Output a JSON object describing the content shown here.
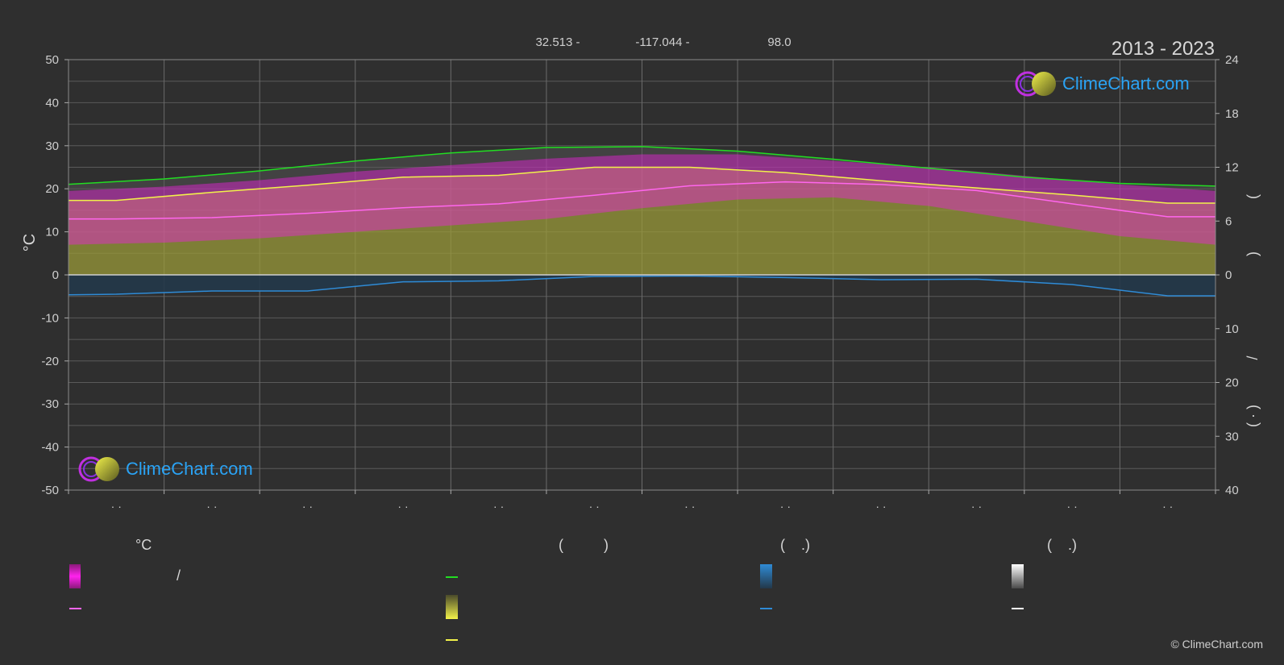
{
  "header": {
    "latitude_text": "32.513 -",
    "longitude_text": "-117.044 -",
    "elevation_text": "98.0",
    "period": "2013 - 2023"
  },
  "logo": {
    "text": "ClimeChart.com"
  },
  "copyright": "© ClimeChart.com",
  "legend": {
    "col1_head": "°C",
    "col1_sep": "/",
    "col2_head": "(          )",
    "col3_head": "(    .)",
    "col4_head": "(    .)"
  },
  "colors": {
    "background": "#2f2f2f",
    "daylight": "#22dd22",
    "sunshine": "#f2f24a",
    "temp_mean": "#ff66ee",
    "temp_range": "#ee22dd",
    "precip": "#2f8bd6",
    "sunshine_fill": "#9a9a3a",
    "grid": "#5a5a5a"
  },
  "chart_data": {
    "type": "line",
    "x": [
      0,
      1,
      2,
      3,
      4,
      5,
      6,
      7,
      8,
      9,
      10,
      11,
      12
    ],
    "xlim": [
      0,
      12
    ],
    "x_tick_labels": [
      "· ·",
      "· ·",
      "· ·",
      "· ·",
      "· ·",
      "· ·",
      "· ·",
      "· ·",
      "· ·",
      "· ·",
      "· ·",
      "· ·"
    ],
    "y_left": {
      "label": "°C",
      "range": [
        -50,
        50
      ],
      "ticks": [
        50,
        40,
        30,
        20,
        10,
        0,
        -10,
        -20,
        -30,
        -40,
        -50
      ]
    },
    "y_right_top": {
      "range": [
        0,
        24
      ],
      "ticks": [
        24,
        18,
        12,
        6,
        0
      ],
      "label_parts": [
        "(",
        ")"
      ]
    },
    "y_right_bottom": {
      "range": [
        0,
        40
      ],
      "ticks": [
        0,
        10,
        20,
        30,
        40
      ],
      "label_parts": [
        "/",
        "(   ·   )"
      ]
    },
    "series": [
      {
        "key": "daylight",
        "axis": "right_top",
        "x": [
          0,
          1,
          2,
          3,
          4,
          5,
          6,
          7,
          8,
          9,
          10,
          11,
          12
        ],
        "values": [
          10.1,
          10.7,
          11.6,
          12.7,
          13.6,
          14.2,
          14.3,
          13.8,
          12.9,
          11.9,
          10.9,
          10.2,
          9.9
        ]
      },
      {
        "key": "sunshine",
        "axis": "right_top",
        "x": [
          0,
          0.5,
          1.5,
          2.5,
          3.5,
          4.5,
          5.5,
          6.5,
          7.5,
          8.5,
          9.5,
          10.5,
          11.5,
          12
        ],
        "values": [
          8.3,
          8.3,
          9.2,
          10.0,
          10.9,
          11.1,
          12.0,
          12.0,
          11.4,
          10.5,
          9.7,
          8.9,
          8.0,
          8.0
        ]
      },
      {
        "key": "temp_mean",
        "axis": "left",
        "x": [
          0,
          0.5,
          1.5,
          2.5,
          3.5,
          4.5,
          5.5,
          6.5,
          7.5,
          8.5,
          9.5,
          10.5,
          11.5,
          12
        ],
        "values": [
          13.0,
          13.0,
          13.3,
          14.3,
          15.6,
          16.5,
          18.5,
          20.7,
          21.6,
          21.0,
          19.6,
          16.5,
          13.5,
          13.5
        ]
      },
      {
        "key": "temp_max_band",
        "axis": "left",
        "x": [
          0,
          1,
          2,
          3,
          4,
          5,
          6,
          7,
          8,
          9,
          10,
          11,
          12
        ],
        "values": [
          19.5,
          20.5,
          22,
          24,
          25.5,
          27,
          28,
          28,
          26.5,
          25,
          23,
          21,
          19.5
        ]
      },
      {
        "key": "temp_min_band",
        "axis": "left",
        "x": [
          0,
          1,
          2,
          3,
          4,
          5,
          6,
          7,
          8,
          9,
          10,
          11,
          12
        ],
        "values": [
          7,
          7.5,
          8.5,
          10,
          11.5,
          13,
          15.5,
          17.5,
          18,
          16,
          12.5,
          9,
          7
        ]
      },
      {
        "key": "precip",
        "axis": "right_bottom",
        "x": [
          0,
          0.5,
          1.5,
          2.5,
          3.5,
          4.5,
          5.5,
          6.5,
          7.5,
          8.5,
          9.5,
          10.5,
          11.5,
          12
        ],
        "values": [
          3.7,
          3.6,
          3.0,
          3.0,
          1.3,
          1.1,
          0.3,
          0.2,
          0.5,
          0.9,
          0.8,
          1.8,
          3.9,
          3.9
        ]
      }
    ]
  }
}
